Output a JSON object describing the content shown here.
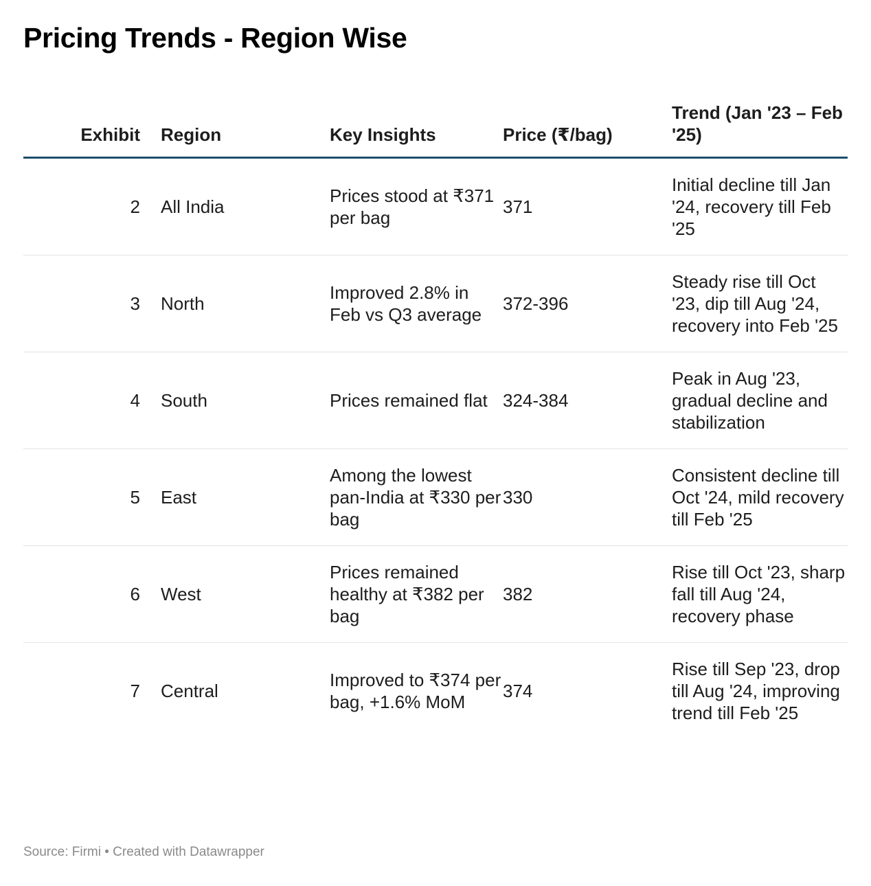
{
  "title": "Pricing Trends - Region Wise",
  "chart_data": {
    "type": "table",
    "columns": [
      "Exhibit",
      "Region",
      "Key Insights",
      "Price (₹/bag)",
      "Trend (Jan '23 – Feb '25)"
    ],
    "rows": [
      {
        "exhibit": "2",
        "region": "All India",
        "insight": "Prices stood at ₹371 per bag",
        "price": "371",
        "trend": "Initial decline till Jan '24, recovery till Feb '25"
      },
      {
        "exhibit": "3",
        "region": "North",
        "insight": "Improved 2.8% in Feb vs Q3 average",
        "price": "372-396",
        "trend": "Steady rise till Oct '23, dip till Aug '24, recovery into Feb '25"
      },
      {
        "exhibit": "4",
        "region": "South",
        "insight": "Prices remained flat",
        "price": "324-384",
        "trend": "Peak in Aug '23, gradual decline and stabilization"
      },
      {
        "exhibit": "5",
        "region": "East",
        "insight": "Among the lowest pan-India at ₹330 per bag",
        "price": "330",
        "trend": "Consistent decline till Oct '24, mild recovery till Feb '25"
      },
      {
        "exhibit": "6",
        "region": "West",
        "insight": "Prices remained healthy at ₹382 per bag",
        "price": "382",
        "trend": "Rise till Oct '23, sharp fall till Aug '24, recovery phase"
      },
      {
        "exhibit": "7",
        "region": "Central",
        "insight": "Improved to ₹374 per bag, +1.6% MoM",
        "price": "374",
        "trend": "Rise till Sep '23, drop till Aug '24, improving trend till Feb '25"
      }
    ]
  },
  "source": "Source: Firmi • Created with Datawrapper",
  "colors": {
    "header_rule": "#1d4e6b",
    "row_divider": "#e3e3e3",
    "source_text": "#8a8a8a"
  }
}
